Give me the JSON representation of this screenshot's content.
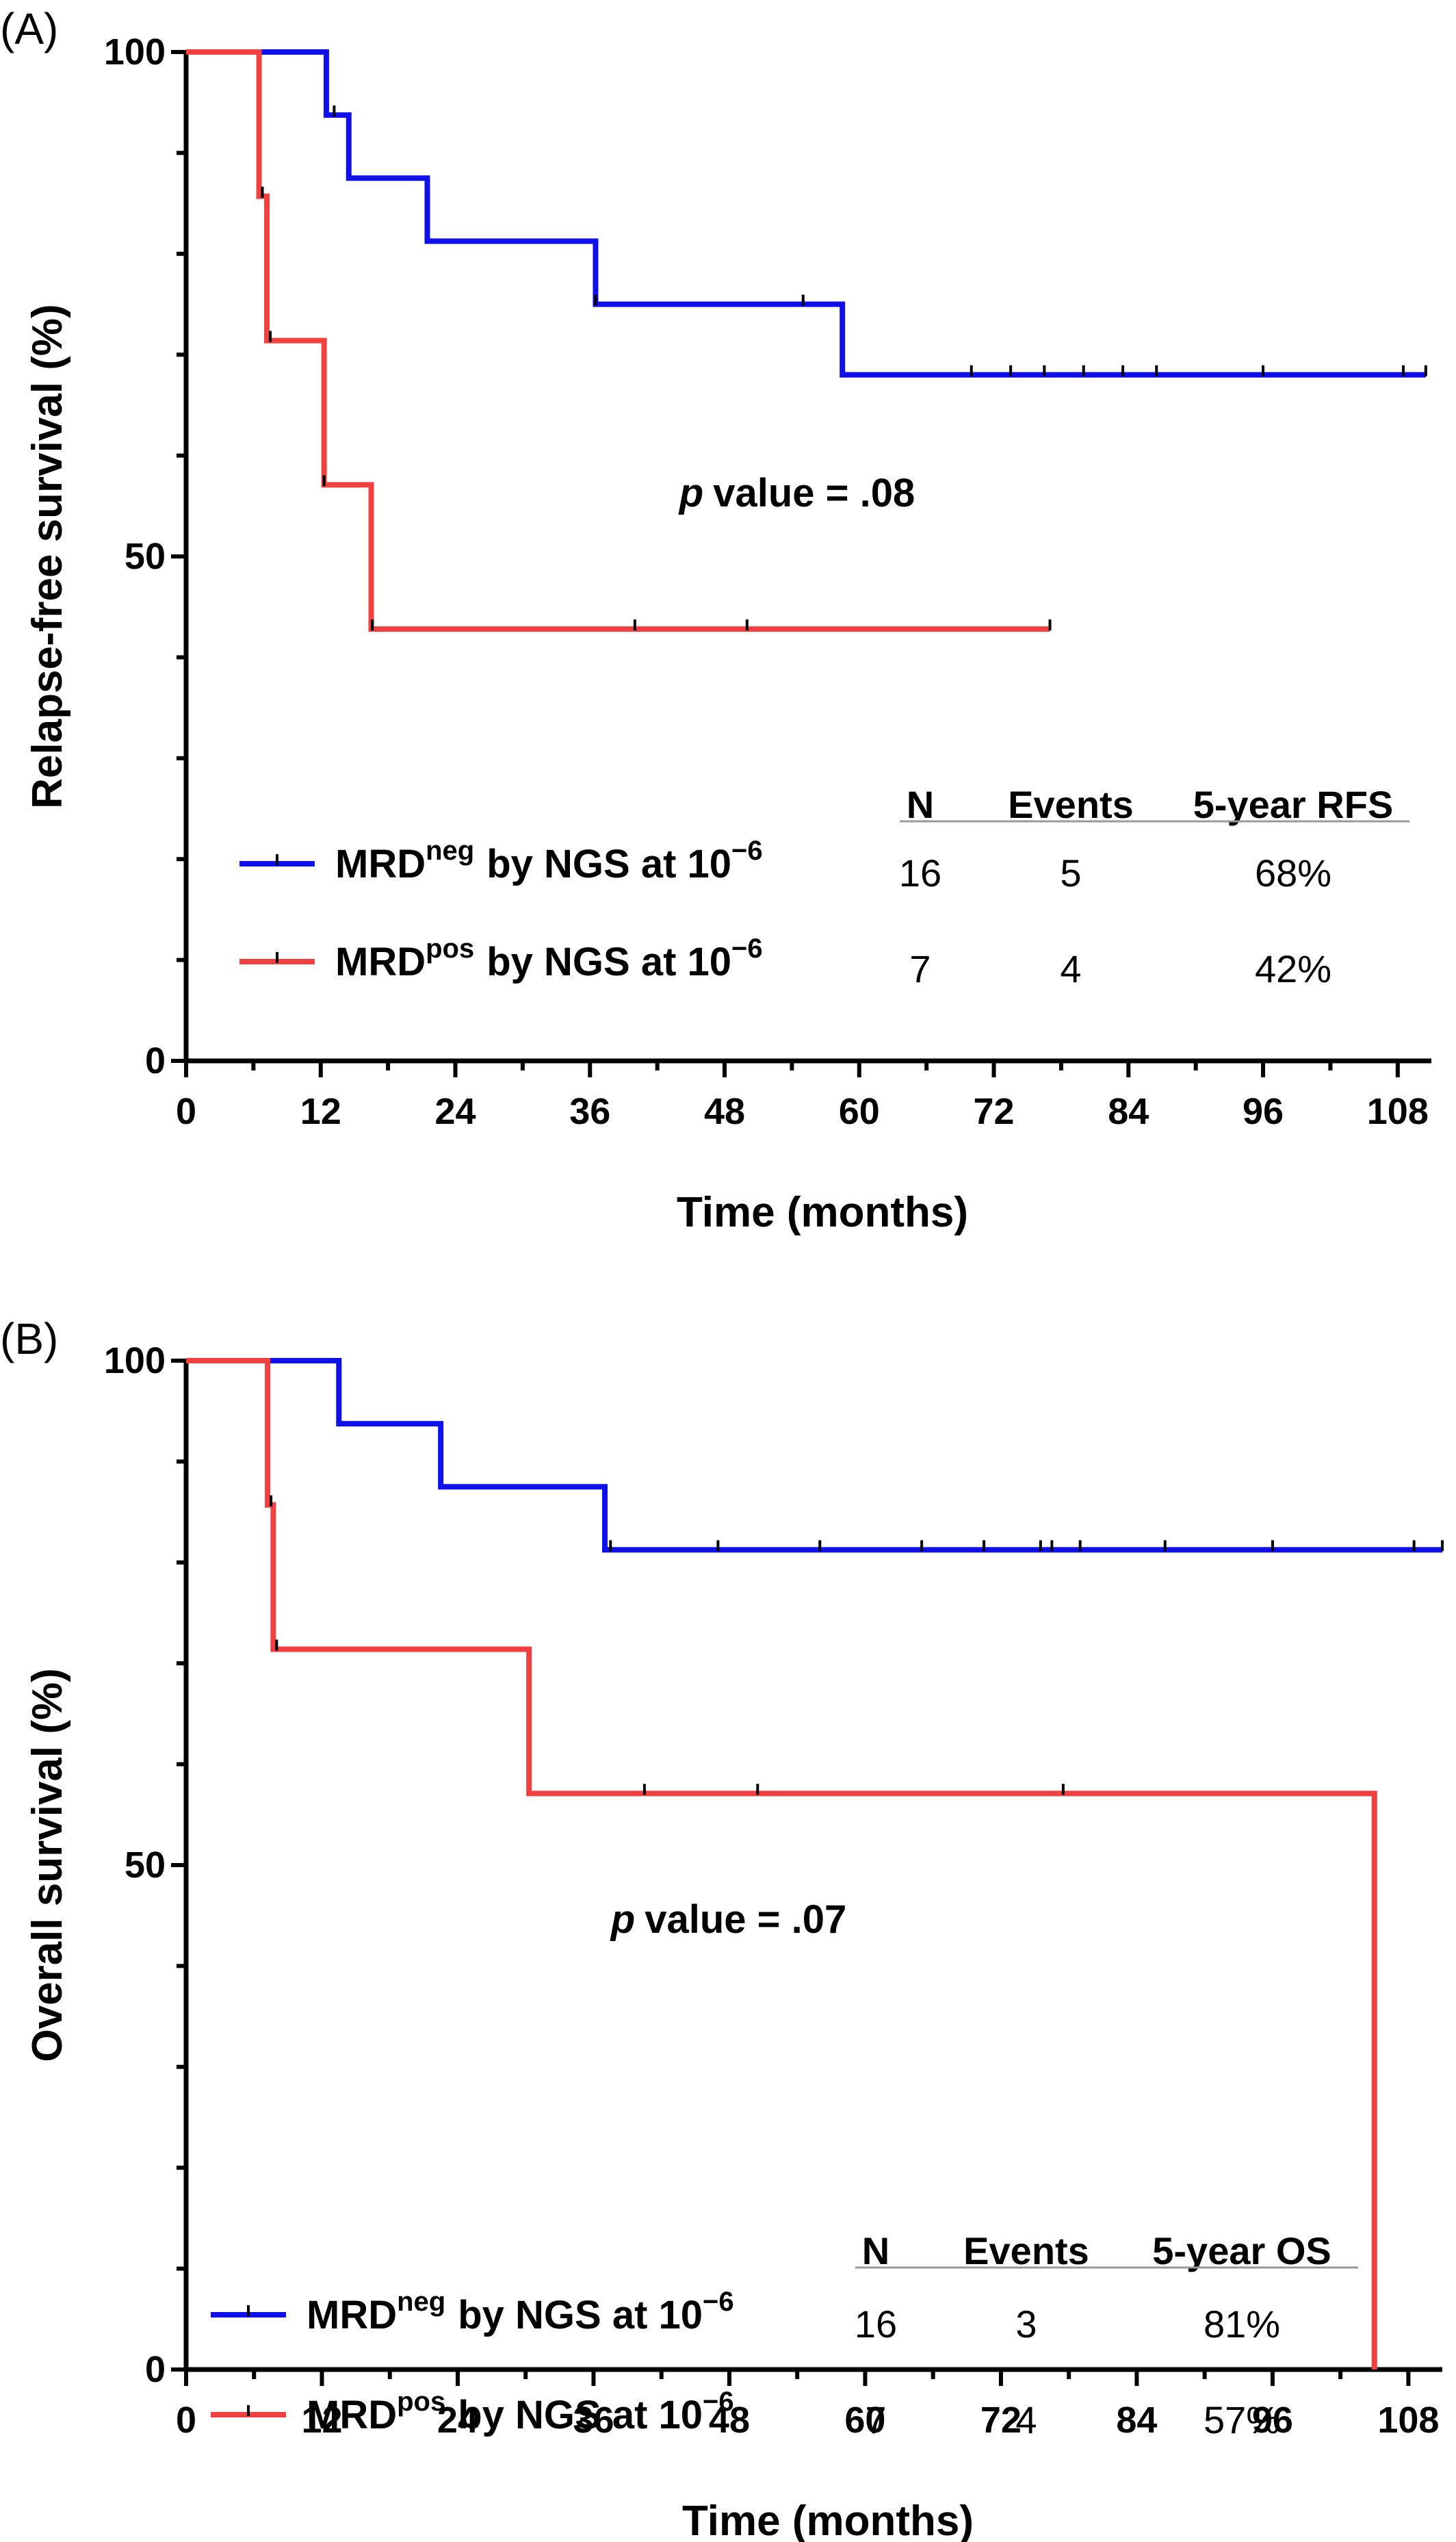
{
  "colors": {
    "neg": "#1010e8",
    "pos": "#f04040",
    "axis": "#000000",
    "rule": "#999999"
  },
  "chart_data": [
    {
      "type": "line",
      "panel_label": "(A)",
      "ylabel": "Relapse-free survival (%)",
      "xlabel": "Time (months)",
      "xlim": [
        0,
        111
      ],
      "ylim": [
        0,
        100
      ],
      "xticks": [
        "0",
        "12",
        "24",
        "36",
        "48",
        "60",
        "72",
        "84",
        "96",
        "108"
      ],
      "yticks": [
        "0",
        "50",
        "100"
      ],
      "p_value": {
        "prefix": "p",
        "text": "value = .08"
      },
      "table": {
        "headers": [
          "N",
          "Events",
          "5-year RFS"
        ],
        "rows": [
          [
            "16",
            "5",
            "68%"
          ],
          [
            "7",
            "4",
            "42%"
          ]
        ]
      },
      "series": [
        {
          "legend": {
            "base": "MRD",
            "sup": "neg",
            "rest": "by NGS at 10",
            "exp": "−6"
          },
          "color": "neg",
          "steps": [
            [
              0,
              100
            ],
            [
              12.5,
              93.75
            ],
            [
              14.5,
              87.5
            ],
            [
              21.5,
              81.25
            ],
            [
              36.5,
              75
            ],
            [
              58.5,
              68
            ]
          ],
          "end_x": 110.5,
          "censors": [
            [
              13.2,
              93.75
            ],
            [
              36.5,
              75
            ],
            [
              55,
              75
            ],
            [
              70,
              68
            ],
            [
              73.5,
              68
            ],
            [
              76.5,
              68
            ],
            [
              80,
              68
            ],
            [
              83.5,
              68
            ],
            [
              86.5,
              68
            ],
            [
              96,
              68
            ],
            [
              108.5,
              68
            ],
            [
              110.5,
              68
            ]
          ]
        },
        {
          "legend": {
            "base": "MRD",
            "sup": "pos",
            "rest": "by NGS at 10",
            "exp": "−6"
          },
          "color": "pos",
          "steps": [
            [
              0,
              100
            ],
            [
              6.5,
              85.7
            ],
            [
              7.2,
              71.4
            ],
            [
              12.3,
              57.1
            ],
            [
              16.5,
              42.8
            ]
          ],
          "start_x": 6.5,
          "end_x": 77,
          "censors": [
            [
              6.8,
              85.7
            ],
            [
              7.5,
              71.4
            ],
            [
              12.3,
              57.1
            ],
            [
              16.6,
              42.8
            ],
            [
              40,
              42.8
            ],
            [
              50,
              42.8
            ],
            [
              77,
              42.8
            ]
          ]
        }
      ]
    },
    {
      "type": "line",
      "panel_label": "(B)",
      "ylabel": "Overall survival (%)",
      "xlabel": "Time (months)",
      "xlim": [
        0,
        111
      ],
      "ylim": [
        0,
        100
      ],
      "xticks": [
        "0",
        "12",
        "24",
        "36",
        "48",
        "60",
        "72",
        "84",
        "96",
        "108"
      ],
      "yticks": [
        "0",
        "50",
        "100"
      ],
      "p_value": {
        "prefix": "p",
        "text": "value = .07"
      },
      "table": {
        "headers": [
          "N",
          "Events",
          "5-year OS"
        ],
        "rows": [
          [
            "16",
            "3",
            "81%"
          ],
          [
            "7",
            "4",
            "57%"
          ]
        ]
      },
      "series": [
        {
          "legend": {
            "base": "MRD",
            "sup": "neg",
            "rest": "by NGS at 10",
            "exp": "−6"
          },
          "color": "neg",
          "steps": [
            [
              0,
              100
            ],
            [
              13.5,
              93.75
            ],
            [
              22.5,
              87.5
            ],
            [
              37,
              81.25
            ]
          ],
          "end_x": 111,
          "censors": [
            [
              37.5,
              81.25
            ],
            [
              47,
              81.25
            ],
            [
              56,
              81.25
            ],
            [
              65,
              81.25
            ],
            [
              70.5,
              81.25
            ],
            [
              75.5,
              81.25
            ],
            [
              76.5,
              81.25
            ],
            [
              79,
              81.25
            ],
            [
              86.5,
              81.25
            ],
            [
              96,
              81.25
            ],
            [
              108.5,
              81.25
            ],
            [
              111,
              81.25
            ]
          ]
        },
        {
          "legend": {
            "base": "MRD",
            "sup": "pos",
            "rest": "by NGS at 10",
            "exp": "−6"
          },
          "color": "pos",
          "steps": [
            [
              0,
              100
            ],
            [
              7.2,
              85.7
            ],
            [
              7.7,
              71.4
            ],
            [
              30.3,
              57.1
            ],
            [
              105,
              0
            ]
          ],
          "start_x": 7.2,
          "end_x": 105,
          "censors": [
            [
              7.5,
              85.7
            ],
            [
              8,
              71.4
            ],
            [
              40.5,
              57.1
            ],
            [
              50.5,
              57.1
            ],
            [
              77.5,
              57.1
            ]
          ]
        }
      ]
    }
  ]
}
